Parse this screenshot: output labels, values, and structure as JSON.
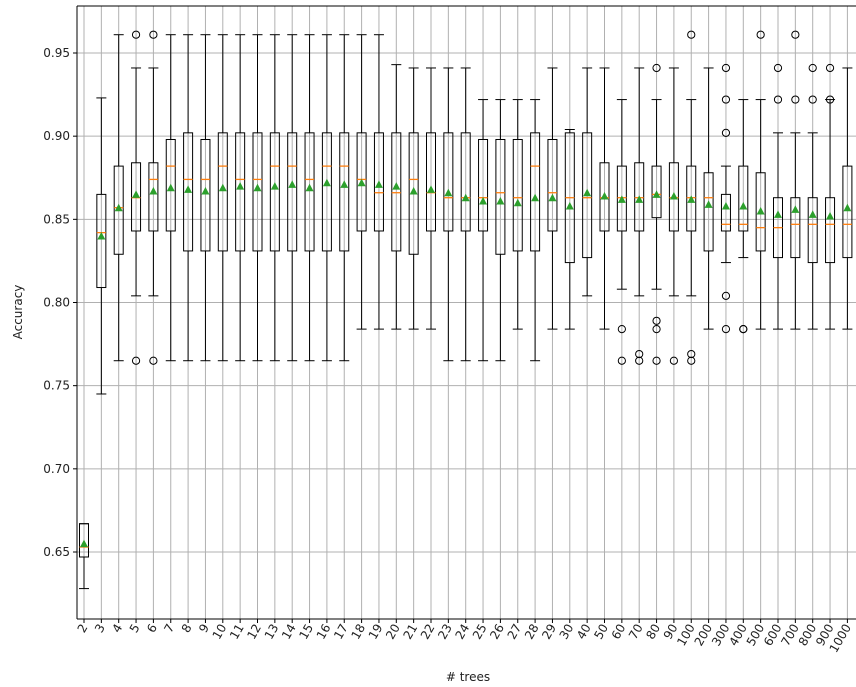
{
  "chart_data": {
    "type": "box",
    "title": "",
    "xlabel": "# trees",
    "ylabel": "Accuracy",
    "grid": true,
    "ylim": [
      0.61,
      0.978
    ],
    "yticks": [
      0.65,
      0.7,
      0.75,
      0.8,
      0.85,
      0.9,
      0.95
    ],
    "ytick_labels": [
      "0.65",
      "0.70",
      "0.75",
      "0.80",
      "0.85",
      "0.90",
      "0.95"
    ],
    "colors": {
      "box": "#000000",
      "median": "#ff7f0e",
      "mean": "#2ca02c",
      "grid": "#b0b0b0",
      "flier": "#000000"
    },
    "categories": [
      "2",
      "3",
      "4",
      "5",
      "6",
      "7",
      "8",
      "9",
      "10",
      "11",
      "12",
      "13",
      "14",
      "15",
      "16",
      "17",
      "18",
      "19",
      "20",
      "21",
      "22",
      "23",
      "24",
      "25",
      "26",
      "27",
      "28",
      "29",
      "30",
      "40",
      "50",
      "60",
      "70",
      "80",
      "90",
      "100",
      "200",
      "300",
      "400",
      "500",
      "600",
      "700",
      "800",
      "900",
      "1000"
    ],
    "boxes": [
      {
        "min": 0.628,
        "q1": 0.647,
        "median": 0.653,
        "q3": 0.667,
        "max": 0.667,
        "mean": 0.655,
        "fliers": []
      },
      {
        "min": 0.745,
        "q1": 0.809,
        "median": 0.842,
        "q3": 0.865,
        "max": 0.923,
        "mean": 0.84,
        "fliers": []
      },
      {
        "min": 0.765,
        "q1": 0.829,
        "median": 0.857,
        "q3": 0.882,
        "max": 0.961,
        "mean": 0.857,
        "fliers": []
      },
      {
        "min": 0.804,
        "q1": 0.843,
        "median": 0.863,
        "q3": 0.884,
        "max": 0.941,
        "mean": 0.865,
        "fliers": [
          0.961,
          0.765
        ]
      },
      {
        "min": 0.804,
        "q1": 0.843,
        "median": 0.874,
        "q3": 0.884,
        "max": 0.941,
        "mean": 0.867,
        "fliers": [
          0.961,
          0.765
        ]
      },
      {
        "min": 0.765,
        "q1": 0.843,
        "median": 0.882,
        "q3": 0.898,
        "max": 0.961,
        "mean": 0.869,
        "fliers": []
      },
      {
        "min": 0.765,
        "q1": 0.831,
        "median": 0.874,
        "q3": 0.902,
        "max": 0.961,
        "mean": 0.868,
        "fliers": []
      },
      {
        "min": 0.765,
        "q1": 0.831,
        "median": 0.874,
        "q3": 0.898,
        "max": 0.961,
        "mean": 0.867,
        "fliers": []
      },
      {
        "min": 0.765,
        "q1": 0.831,
        "median": 0.882,
        "q3": 0.902,
        "max": 0.961,
        "mean": 0.869,
        "fliers": []
      },
      {
        "min": 0.765,
        "q1": 0.831,
        "median": 0.874,
        "q3": 0.902,
        "max": 0.961,
        "mean": 0.87,
        "fliers": []
      },
      {
        "min": 0.765,
        "q1": 0.831,
        "median": 0.874,
        "q3": 0.902,
        "max": 0.961,
        "mean": 0.869,
        "fliers": []
      },
      {
        "min": 0.765,
        "q1": 0.831,
        "median": 0.882,
        "q3": 0.902,
        "max": 0.961,
        "mean": 0.87,
        "fliers": []
      },
      {
        "min": 0.765,
        "q1": 0.831,
        "median": 0.882,
        "q3": 0.902,
        "max": 0.961,
        "mean": 0.871,
        "fliers": []
      },
      {
        "min": 0.765,
        "q1": 0.831,
        "median": 0.874,
        "q3": 0.902,
        "max": 0.961,
        "mean": 0.869,
        "fliers": []
      },
      {
        "min": 0.765,
        "q1": 0.831,
        "median": 0.882,
        "q3": 0.902,
        "max": 0.961,
        "mean": 0.872,
        "fliers": []
      },
      {
        "min": 0.765,
        "q1": 0.831,
        "median": 0.882,
        "q3": 0.902,
        "max": 0.961,
        "mean": 0.871,
        "fliers": []
      },
      {
        "min": 0.784,
        "q1": 0.843,
        "median": 0.874,
        "q3": 0.902,
        "max": 0.961,
        "mean": 0.872,
        "fliers": []
      },
      {
        "min": 0.784,
        "q1": 0.843,
        "median": 0.866,
        "q3": 0.902,
        "max": 0.961,
        "mean": 0.871,
        "fliers": []
      },
      {
        "min": 0.784,
        "q1": 0.831,
        "median": 0.866,
        "q3": 0.902,
        "max": 0.943,
        "mean": 0.87,
        "fliers": []
      },
      {
        "min": 0.784,
        "q1": 0.829,
        "median": 0.874,
        "q3": 0.902,
        "max": 0.941,
        "mean": 0.867,
        "fliers": []
      },
      {
        "min": 0.784,
        "q1": 0.843,
        "median": 0.866,
        "q3": 0.902,
        "max": 0.941,
        "mean": 0.868,
        "fliers": []
      },
      {
        "min": 0.765,
        "q1": 0.843,
        "median": 0.863,
        "q3": 0.902,
        "max": 0.941,
        "mean": 0.866,
        "fliers": []
      },
      {
        "min": 0.765,
        "q1": 0.843,
        "median": 0.863,
        "q3": 0.902,
        "max": 0.941,
        "mean": 0.863,
        "fliers": []
      },
      {
        "min": 0.765,
        "q1": 0.843,
        "median": 0.863,
        "q3": 0.898,
        "max": 0.922,
        "mean": 0.861,
        "fliers": []
      },
      {
        "min": 0.765,
        "q1": 0.829,
        "median": 0.866,
        "q3": 0.898,
        "max": 0.922,
        "mean": 0.861,
        "fliers": []
      },
      {
        "min": 0.784,
        "q1": 0.831,
        "median": 0.863,
        "q3": 0.898,
        "max": 0.922,
        "mean": 0.86,
        "fliers": []
      },
      {
        "min": 0.765,
        "q1": 0.831,
        "median": 0.882,
        "q3": 0.902,
        "max": 0.922,
        "mean": 0.863,
        "fliers": []
      },
      {
        "min": 0.784,
        "q1": 0.843,
        "median": 0.866,
        "q3": 0.898,
        "max": 0.941,
        "mean": 0.863,
        "fliers": []
      },
      {
        "min": 0.784,
        "q1": 0.824,
        "median": 0.863,
        "q3": 0.902,
        "max": 0.904,
        "mean": 0.858,
        "fliers": []
      },
      {
        "min": 0.804,
        "q1": 0.827,
        "median": 0.863,
        "q3": 0.902,
        "max": 0.941,
        "mean": 0.866,
        "fliers": []
      },
      {
        "min": 0.784,
        "q1": 0.843,
        "median": 0.863,
        "q3": 0.884,
        "max": 0.941,
        "mean": 0.864,
        "fliers": []
      },
      {
        "min": 0.808,
        "q1": 0.843,
        "median": 0.863,
        "q3": 0.882,
        "max": 0.922,
        "mean": 0.862,
        "fliers": [
          0.784,
          0.765
        ]
      },
      {
        "min": 0.804,
        "q1": 0.843,
        "median": 0.863,
        "q3": 0.884,
        "max": 0.941,
        "mean": 0.862,
        "fliers": [
          0.769,
          0.765
        ]
      },
      {
        "min": 0.808,
        "q1": 0.851,
        "median": 0.865,
        "q3": 0.882,
        "max": 0.922,
        "mean": 0.865,
        "fliers": [
          0.941,
          0.789,
          0.784,
          0.765
        ]
      },
      {
        "min": 0.804,
        "q1": 0.843,
        "median": 0.863,
        "q3": 0.884,
        "max": 0.941,
        "mean": 0.864,
        "fliers": [
          0.765
        ]
      },
      {
        "min": 0.804,
        "q1": 0.843,
        "median": 0.863,
        "q3": 0.882,
        "max": 0.922,
        "mean": 0.862,
        "fliers": [
          0.961,
          0.769,
          0.765
        ]
      },
      {
        "min": 0.784,
        "q1": 0.831,
        "median": 0.863,
        "q3": 0.878,
        "max": 0.941,
        "mean": 0.859,
        "fliers": []
      },
      {
        "min": 0.824,
        "q1": 0.843,
        "median": 0.847,
        "q3": 0.865,
        "max": 0.882,
        "mean": 0.858,
        "fliers": [
          0.941,
          0.922,
          0.902,
          0.804,
          0.784
        ]
      },
      {
        "min": 0.827,
        "q1": 0.843,
        "median": 0.847,
        "q3": 0.882,
        "max": 0.922,
        "mean": 0.858,
        "fliers": [
          0.784,
          0.784
        ]
      },
      {
        "min": 0.784,
        "q1": 0.831,
        "median": 0.845,
        "q3": 0.878,
        "max": 0.922,
        "mean": 0.855,
        "fliers": [
          0.961
        ]
      },
      {
        "min": 0.784,
        "q1": 0.827,
        "median": 0.845,
        "q3": 0.863,
        "max": 0.902,
        "mean": 0.853,
        "fliers": [
          0.941,
          0.922
        ]
      },
      {
        "min": 0.784,
        "q1": 0.827,
        "median": 0.847,
        "q3": 0.863,
        "max": 0.902,
        "mean": 0.856,
        "fliers": [
          0.961,
          0.922
        ]
      },
      {
        "min": 0.784,
        "q1": 0.824,
        "median": 0.847,
        "q3": 0.863,
        "max": 0.902,
        "mean": 0.853,
        "fliers": [
          0.941,
          0.922
        ]
      },
      {
        "min": 0.784,
        "q1": 0.824,
        "median": 0.847,
        "q3": 0.863,
        "max": 0.922,
        "mean": 0.852,
        "fliers": [
          0.941,
          0.922
        ]
      },
      {
        "min": 0.784,
        "q1": 0.827,
        "median": 0.847,
        "q3": 0.882,
        "max": 0.941,
        "mean": 0.857,
        "fliers": []
      }
    ]
  }
}
